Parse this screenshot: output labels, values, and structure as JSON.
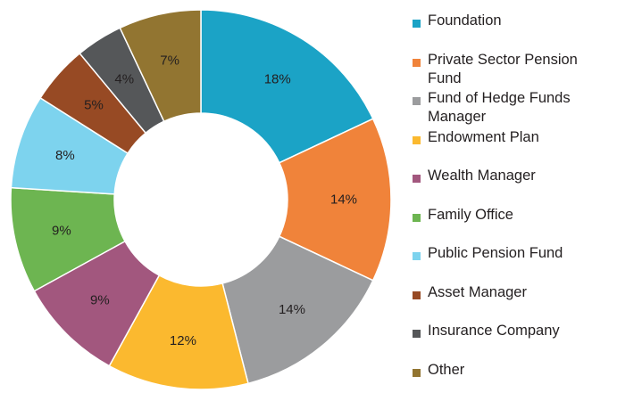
{
  "chart_data": {
    "type": "pie",
    "variant": "donut",
    "legend_position": "right",
    "slices": [
      {
        "label": "Foundation",
        "value": 18,
        "value_label": "18%",
        "color": "#1ba3c6"
      },
      {
        "label": "Private Sector Pension Fund",
        "value": 14,
        "value_label": "14%",
        "color": "#f0833a"
      },
      {
        "label": "Fund of Hedge Funds Manager",
        "value": 14,
        "value_label": "14%",
        "color": "#9b9c9e"
      },
      {
        "label": "Endowment Plan",
        "value": 12,
        "value_label": "12%",
        "color": "#fbb92f"
      },
      {
        "label": "Wealth Manager",
        "value": 9,
        "value_label": "9%",
        "color": "#a2577e"
      },
      {
        "label": "Family Office",
        "value": 9,
        "value_label": "9%",
        "color": "#6db551"
      },
      {
        "label": "Public Pension Fund",
        "value": 8,
        "value_label": "8%",
        "color": "#7dd3ee"
      },
      {
        "label": "Asset Manager",
        "value": 5,
        "value_label": "5%",
        "color": "#974a24"
      },
      {
        "label": "Insurance Company",
        "value": 4,
        "value_label": "4%",
        "color": "#555759"
      },
      {
        "label": "Other",
        "value": 7,
        "value_label": "7%",
        "color": "#927531"
      }
    ]
  }
}
